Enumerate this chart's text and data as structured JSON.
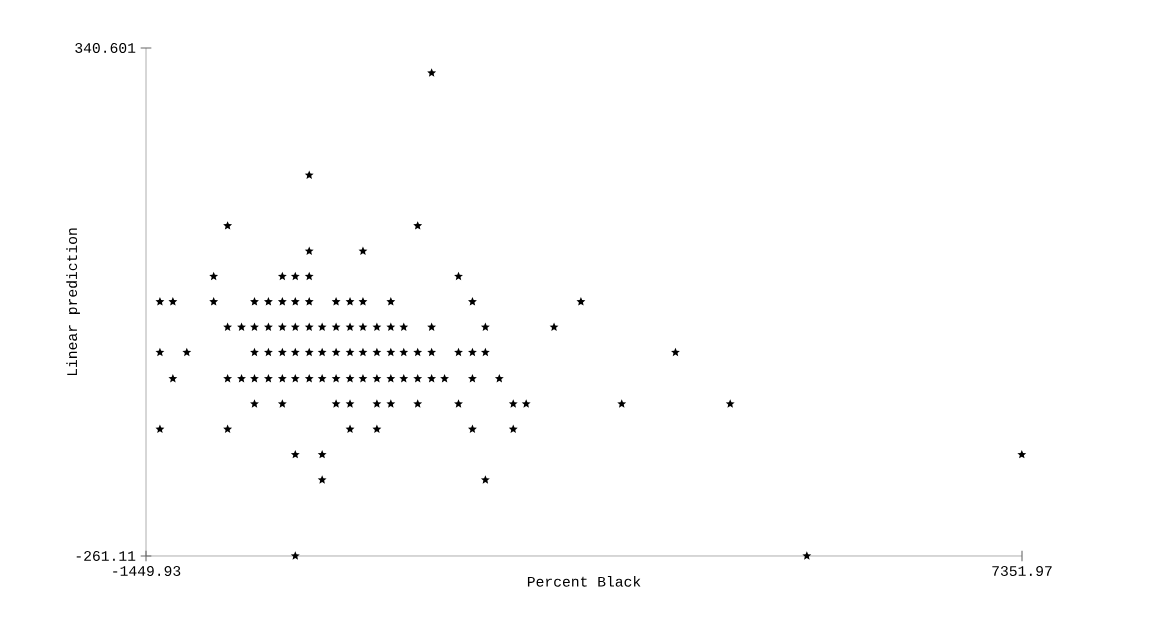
{
  "chart_data": {
    "type": "scatter",
    "xlabel": "Percent Black",
    "ylabel": "Linear prediction",
    "marker": "star",
    "xlim": [
      -1449.93,
      7351.97
    ],
    "ylim": [
      -261.11,
      340.601
    ],
    "xticks": [
      -1449.93,
      7351.97
    ],
    "yticks": [
      -261.11,
      340.601
    ],
    "series": [
      {
        "color": "#000000",
        "x": [
          1420,
          190,
          -630,
          1280,
          190,
          730,
          -770,
          -80,
          50,
          190,
          1690,
          -1310,
          -1180,
          -770,
          -360,
          -220,
          -80,
          50,
          190,
          460,
          600,
          730,
          1010,
          1830,
          2920,
          -630,
          -490,
          -360,
          -220,
          -80,
          50,
          190,
          320,
          460,
          600,
          730,
          870,
          1010,
          1140,
          1420,
          1960,
          2650,
          -1310,
          -1040,
          -360,
          -220,
          -80,
          50,
          190,
          320,
          460,
          600,
          730,
          870,
          1010,
          1140,
          1280,
          1420,
          1690,
          1830,
          1960,
          3870,
          -1180,
          -630,
          -490,
          -360,
          -220,
          -80,
          50,
          190,
          320,
          460,
          600,
          730,
          870,
          1010,
          1140,
          1280,
          1420,
          1550,
          1830,
          2100,
          -360,
          -80,
          460,
          600,
          870,
          1010,
          1280,
          1690,
          2240,
          2370,
          3330,
          4420,
          -1310,
          -630,
          600,
          870,
          1830,
          2240,
          50,
          320,
          7350,
          320,
          1960,
          50,
          5190
        ],
        "values": [
          311,
          190,
          130,
          130,
          100,
          100,
          70,
          70,
          70,
          70,
          70,
          40,
          40,
          40,
          40,
          40,
          40,
          40,
          40,
          40,
          40,
          40,
          40,
          40,
          40,
          10,
          10,
          10,
          10,
          10,
          10,
          10,
          10,
          10,
          10,
          10,
          10,
          10,
          10,
          10,
          10,
          10,
          -20,
          -20,
          -20,
          -20,
          -20,
          -20,
          -20,
          -20,
          -20,
          -20,
          -20,
          -20,
          -20,
          -20,
          -20,
          -20,
          -20,
          -20,
          -20,
          -20,
          -51,
          -51,
          -51,
          -51,
          -51,
          -51,
          -51,
          -51,
          -51,
          -51,
          -51,
          -51,
          -51,
          -51,
          -51,
          -51,
          -51,
          -51,
          -51,
          -51,
          -81,
          -81,
          -81,
          -81,
          -81,
          -81,
          -81,
          -81,
          -81,
          -81,
          -81,
          -81,
          -111,
          -111,
          -111,
          -111,
          -111,
          -111,
          -141,
          -141,
          -141,
          -171,
          -171,
          -261,
          -261
        ]
      }
    ]
  }
}
